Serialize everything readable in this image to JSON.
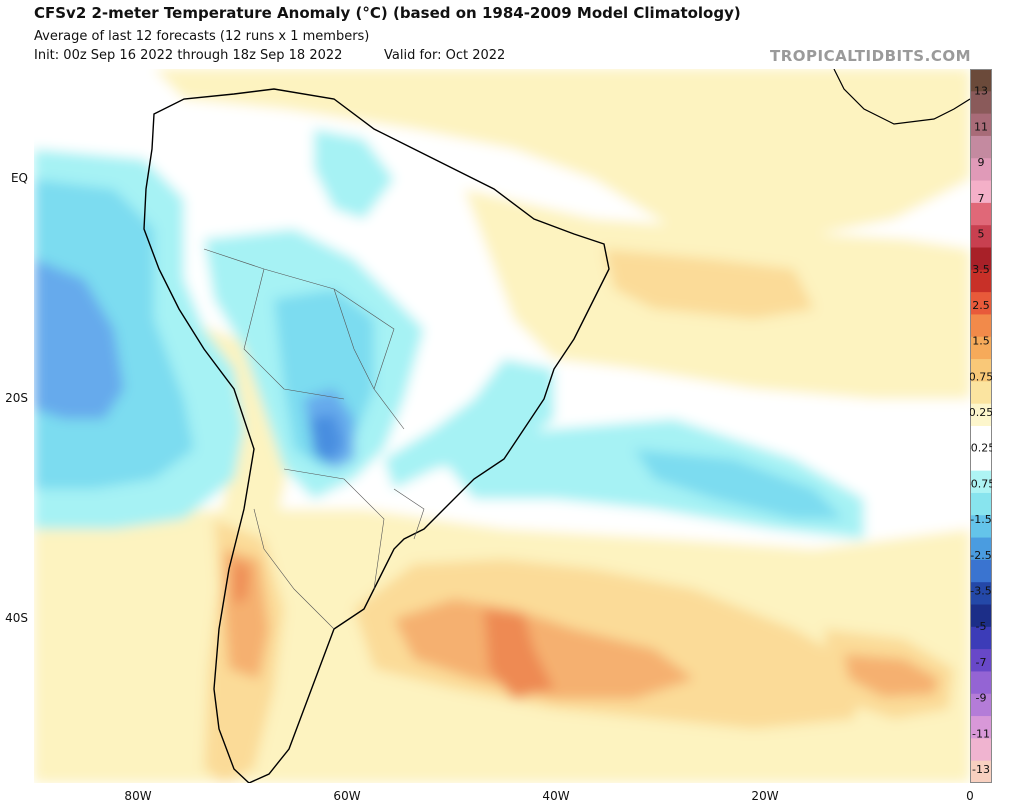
{
  "header": {
    "title": "CFSv2 2-meter Temperature Anomaly (°C) (based on 1984-2009 Model Climatology)",
    "subtitle": "Average of last 12 forecasts (12 runs x 1 members)",
    "init": "Init: 00z Sep 16 2022 through 18z Sep 18 2022",
    "valid": "Valid for: Oct 2022",
    "brand": "TROPICALTIDBITS.COM"
  },
  "axes": {
    "lat_labels": [
      "EQ",
      "20S",
      "40S"
    ],
    "lon_labels": [
      "80W",
      "60W",
      "40W",
      "20W",
      "0"
    ]
  },
  "colorbar": {
    "labels": [
      "13",
      "11",
      "9",
      "7",
      "5",
      "3.5",
      "2.5",
      "1.5",
      "0.75",
      "0.25",
      "-0.25",
      "-0.75",
      "-1.5",
      "-2.5",
      "-3.5",
      "-5",
      "-7",
      "-9",
      "-11",
      "-13"
    ],
    "colors": [
      "#6b4a3a",
      "#8a5a5a",
      "#a86b78",
      "#c48aa0",
      "#e09ab8",
      "#f4b0c8",
      "#e06878",
      "#c84050",
      "#a82028",
      "#c83028",
      "#e85a3a",
      "#f28a4a",
      "#f6aa5a",
      "#f9c878",
      "#fbe4a0",
      "#fdf6cc",
      "#ffffff",
      "#ffffff",
      "#aef4f4",
      "#88e4ee",
      "#64c4ea",
      "#4a9ce0",
      "#3a74d0",
      "#2448a8",
      "#1c2e88",
      "#3c3cb8",
      "#6848c8",
      "#9464d4",
      "#b47cd8",
      "#d898d8",
      "#f0b4d0",
      "#f8d0c0"
    ]
  },
  "map": {
    "region": "South America and South Atlantic",
    "colors": {
      "ocean": "#ffffff",
      "land_border": "#000000",
      "warm_light": "#fdf3c0",
      "warm_mid": "#fbdb98",
      "warm_strong": "#f5b070",
      "warm_peak": "#ee8a52",
      "cool_light": "#a6f2f4",
      "cool_mid": "#7cdcf0",
      "cool_strong": "#66aaec",
      "cool_peak": "#4a8ee0"
    }
  }
}
